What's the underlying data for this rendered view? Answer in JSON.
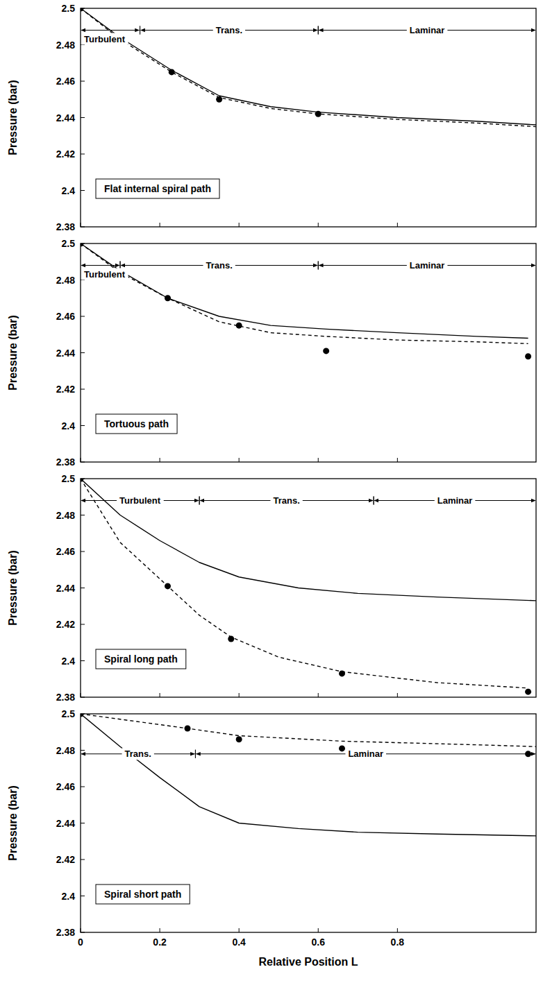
{
  "chart_data": [
    {
      "type": "line",
      "title": "Flat internal spiral path",
      "y_label": "Pressure (bar)",
      "xlim": [
        0,
        1.15
      ],
      "xticks": [
        0,
        0.2,
        0.4,
        0.6,
        0.8
      ],
      "ylim": [
        2.38,
        2.5
      ],
      "yticks": [
        2.38,
        2.4,
        2.42,
        2.44,
        2.46,
        2.48,
        2.5
      ],
      "grid": false,
      "tick_labels": "y",
      "regime_y": 2.488,
      "regimes": [
        {
          "label": "Turbulent",
          "from": 0,
          "to": 0.15
        },
        {
          "label": "Trans.",
          "from": 0.15,
          "to": 0.6
        },
        {
          "label": "Laminar",
          "from": 0.6,
          "to": 1.15
        }
      ],
      "series": [
        {
          "type": "line",
          "line_style": "solid",
          "color": "#000000",
          "x": [
            0,
            0.1,
            0.23,
            0.35,
            0.48,
            0.6,
            0.8,
            1.0,
            1.15
          ],
          "values": [
            2.5,
            2.484,
            2.466,
            2.452,
            2.446,
            2.443,
            2.44,
            2.438,
            2.436
          ]
        },
        {
          "type": "line",
          "line_style": "dashed",
          "color": "#000000",
          "x": [
            0,
            0.1,
            0.23,
            0.35,
            0.48,
            0.6,
            0.8,
            1.0,
            1.15
          ],
          "values": [
            2.5,
            2.483,
            2.465,
            2.451,
            2.445,
            2.442,
            2.439,
            2.437,
            2.435
          ]
        },
        {
          "type": "scatter",
          "marker": "circle",
          "color": "#000000",
          "x": [
            0,
            0.23,
            0.35,
            0.6
          ],
          "values": [
            2.5,
            2.465,
            2.45,
            2.442
          ]
        }
      ]
    },
    {
      "type": "line",
      "title": "Tortuous path",
      "y_label": "Pressure (bar)",
      "xlim": [
        0,
        1.15
      ],
      "xticks": [
        0,
        0.2,
        0.4,
        0.6,
        0.8
      ],
      "ylim": [
        2.38,
        2.5
      ],
      "yticks": [
        2.38,
        2.4,
        2.42,
        2.44,
        2.46,
        2.48,
        2.5
      ],
      "grid": false,
      "tick_labels": "y",
      "regime_y": 2.488,
      "regimes": [
        {
          "label": "Turbulent",
          "from": 0,
          "to": 0.1
        },
        {
          "label": "Trans.",
          "from": 0.1,
          "to": 0.6
        },
        {
          "label": "Laminar",
          "from": 0.6,
          "to": 1.15
        }
      ],
      "series": [
        {
          "type": "line",
          "line_style": "solid",
          "color": "#000000",
          "x": [
            0,
            0.1,
            0.22,
            0.35,
            0.48,
            0.62,
            0.8,
            1.0,
            1.13
          ],
          "values": [
            2.5,
            2.485,
            2.47,
            2.46,
            2.455,
            2.453,
            2.451,
            2.449,
            2.448
          ]
        },
        {
          "type": "line",
          "line_style": "dashed",
          "color": "#000000",
          "x": [
            0,
            0.1,
            0.22,
            0.35,
            0.48,
            0.62,
            0.8,
            1.0,
            1.13
          ],
          "values": [
            2.5,
            2.484,
            2.47,
            2.457,
            2.451,
            2.449,
            2.447,
            2.446,
            2.445
          ]
        },
        {
          "type": "scatter",
          "marker": "circle",
          "color": "#000000",
          "x": [
            0,
            0.22,
            0.4,
            0.62,
            1.13
          ],
          "values": [
            2.5,
            2.47,
            2.455,
            2.441,
            2.438
          ]
        }
      ]
    },
    {
      "type": "line",
      "title": "Spiral long path",
      "y_label": "Pressure (bar)",
      "xlim": [
        0,
        1.15
      ],
      "xticks": [
        0,
        0.2,
        0.4,
        0.6,
        0.8
      ],
      "ylim": [
        2.38,
        2.5
      ],
      "yticks": [
        2.38,
        2.4,
        2.42,
        2.44,
        2.46,
        2.48,
        2.5
      ],
      "grid": false,
      "tick_labels": "y",
      "regime_y": 2.488,
      "regimes": [
        {
          "label": "Turbulent",
          "from": 0,
          "to": 0.3
        },
        {
          "label": "Trans.",
          "from": 0.3,
          "to": 0.74
        },
        {
          "label": "Laminar",
          "from": 0.74,
          "to": 1.15
        }
      ],
      "series": [
        {
          "type": "line",
          "line_style": "solid",
          "color": "#000000",
          "x": [
            0,
            0.1,
            0.2,
            0.3,
            0.4,
            0.55,
            0.7,
            0.9,
            1.15
          ],
          "values": [
            2.5,
            2.48,
            2.466,
            2.454,
            2.446,
            2.44,
            2.437,
            2.435,
            2.433
          ]
        },
        {
          "type": "line",
          "line_style": "dashed",
          "color": "#000000",
          "x": [
            0,
            0.1,
            0.22,
            0.3,
            0.38,
            0.5,
            0.66,
            0.9,
            1.13
          ],
          "values": [
            2.5,
            2.465,
            2.441,
            2.425,
            2.413,
            2.402,
            2.394,
            2.388,
            2.385
          ]
        },
        {
          "type": "scatter",
          "marker": "circle",
          "color": "#000000",
          "x": [
            0,
            0.22,
            0.38,
            0.66,
            1.13
          ],
          "values": [
            2.5,
            2.441,
            2.412,
            2.393,
            2.383
          ]
        }
      ]
    },
    {
      "type": "line",
      "title": "Spiral short path",
      "y_label": "Pressure (bar)",
      "x_label": "Relative Position L",
      "xlim": [
        0,
        1.15
      ],
      "xticks": [
        0,
        0.2,
        0.4,
        0.6,
        0.8
      ],
      "ylim": [
        2.38,
        2.5
      ],
      "yticks": [
        2.38,
        2.4,
        2.42,
        2.44,
        2.46,
        2.48,
        2.5
      ],
      "grid": false,
      "tick_labels": true,
      "regime_y": 2.478,
      "regimes": [
        {
          "label": "Trans.",
          "from": 0,
          "to": 0.29
        },
        {
          "label": "Laminar",
          "from": 0.29,
          "to": 1.15
        }
      ],
      "series": [
        {
          "type": "line",
          "line_style": "solid",
          "color": "#000000",
          "x": [
            0,
            0.1,
            0.2,
            0.3,
            0.4,
            0.55,
            0.7,
            0.9,
            1.15
          ],
          "values": [
            2.5,
            2.482,
            2.465,
            2.449,
            2.44,
            2.437,
            2.435,
            2.434,
            2.433
          ]
        },
        {
          "type": "line",
          "line_style": "dashed",
          "color": "#000000",
          "x": [
            0,
            0.27,
            0.4,
            0.66,
            1.0,
            1.15
          ],
          "values": [
            2.5,
            2.492,
            2.488,
            2.485,
            2.483,
            2.482
          ]
        },
        {
          "type": "scatter",
          "marker": "circle",
          "color": "#000000",
          "x": [
            0,
            0.27,
            0.4,
            0.66,
            1.13
          ],
          "values": [
            2.5,
            2.492,
            2.486,
            2.481,
            2.478
          ]
        }
      ]
    }
  ]
}
